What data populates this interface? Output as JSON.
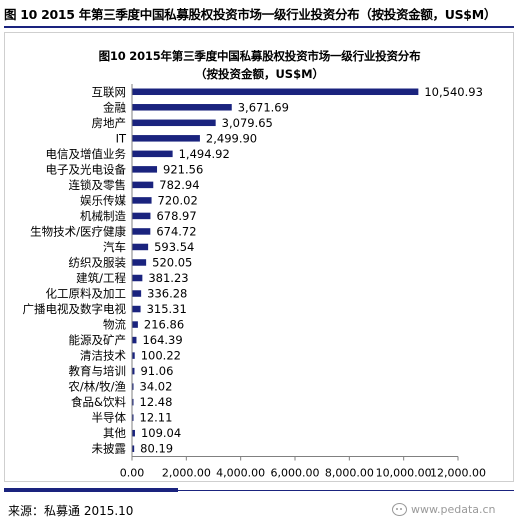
{
  "header": {
    "title": "图 10 2015 年第三季度中国私募股权投资市场一级行业投资分布（按投资金额，US$M）"
  },
  "chart_data": {
    "type": "bar",
    "orientation": "horizontal",
    "title": "图10 2015年第三季度中国私募股权投资市场一级行业投资分布",
    "subtitle": "（按投资金额，US$M）",
    "categories": [
      "互联网",
      "金融",
      "房地产",
      "IT",
      "电信及增值业务",
      "电子及光电设备",
      "连锁及零售",
      "娱乐传媒",
      "机械制造",
      "生物技术/医疗健康",
      "汽车",
      "纺织及服装",
      "建筑/工程",
      "化工原料及加工",
      "广播电视及数字电视",
      "物流",
      "能源及矿产",
      "清洁技术",
      "教育与培训",
      "农/林/牧/渔",
      "食品&饮料",
      "半导体",
      "其他",
      "未披露"
    ],
    "values": [
      10540.93,
      3671.69,
      3079.65,
      2499.9,
      1494.92,
      921.56,
      782.94,
      720.02,
      678.97,
      674.72,
      593.54,
      520.05,
      381.23,
      336.28,
      315.31,
      216.86,
      164.39,
      100.22,
      91.06,
      34.02,
      12.48,
      12.11,
      109.04,
      80.19
    ],
    "value_labels": [
      "10,540.93",
      "3,671.69",
      "3,079.65",
      "2,499.90",
      "1,494.92",
      "921.56",
      "782.94",
      "720.02",
      "678.97",
      "674.72",
      "593.54",
      "520.05",
      "381.23",
      "336.28",
      "315.31",
      "216.86",
      "164.39",
      "100.22",
      "91.06",
      "34.02",
      "12.48",
      "12.11",
      "109.04",
      "80.19"
    ],
    "xlim": [
      0,
      12000
    ],
    "x_ticks": [
      0,
      2000,
      4000,
      6000,
      8000,
      10000,
      12000
    ],
    "x_tick_labels": [
      "0.00",
      "2,000.00",
      "4,000.00",
      "6,000.00",
      "8,000.00",
      "10,000.00",
      "12,000.00"
    ],
    "xlabel": "",
    "ylabel": "",
    "grid": false,
    "legend": "none",
    "bar_color": "#1a237e"
  },
  "footer": {
    "source": "来源：私募通 2015.10",
    "watermark": "www.pedata.cn"
  },
  "icons": {
    "watermark_icon": "wechat-icon"
  }
}
